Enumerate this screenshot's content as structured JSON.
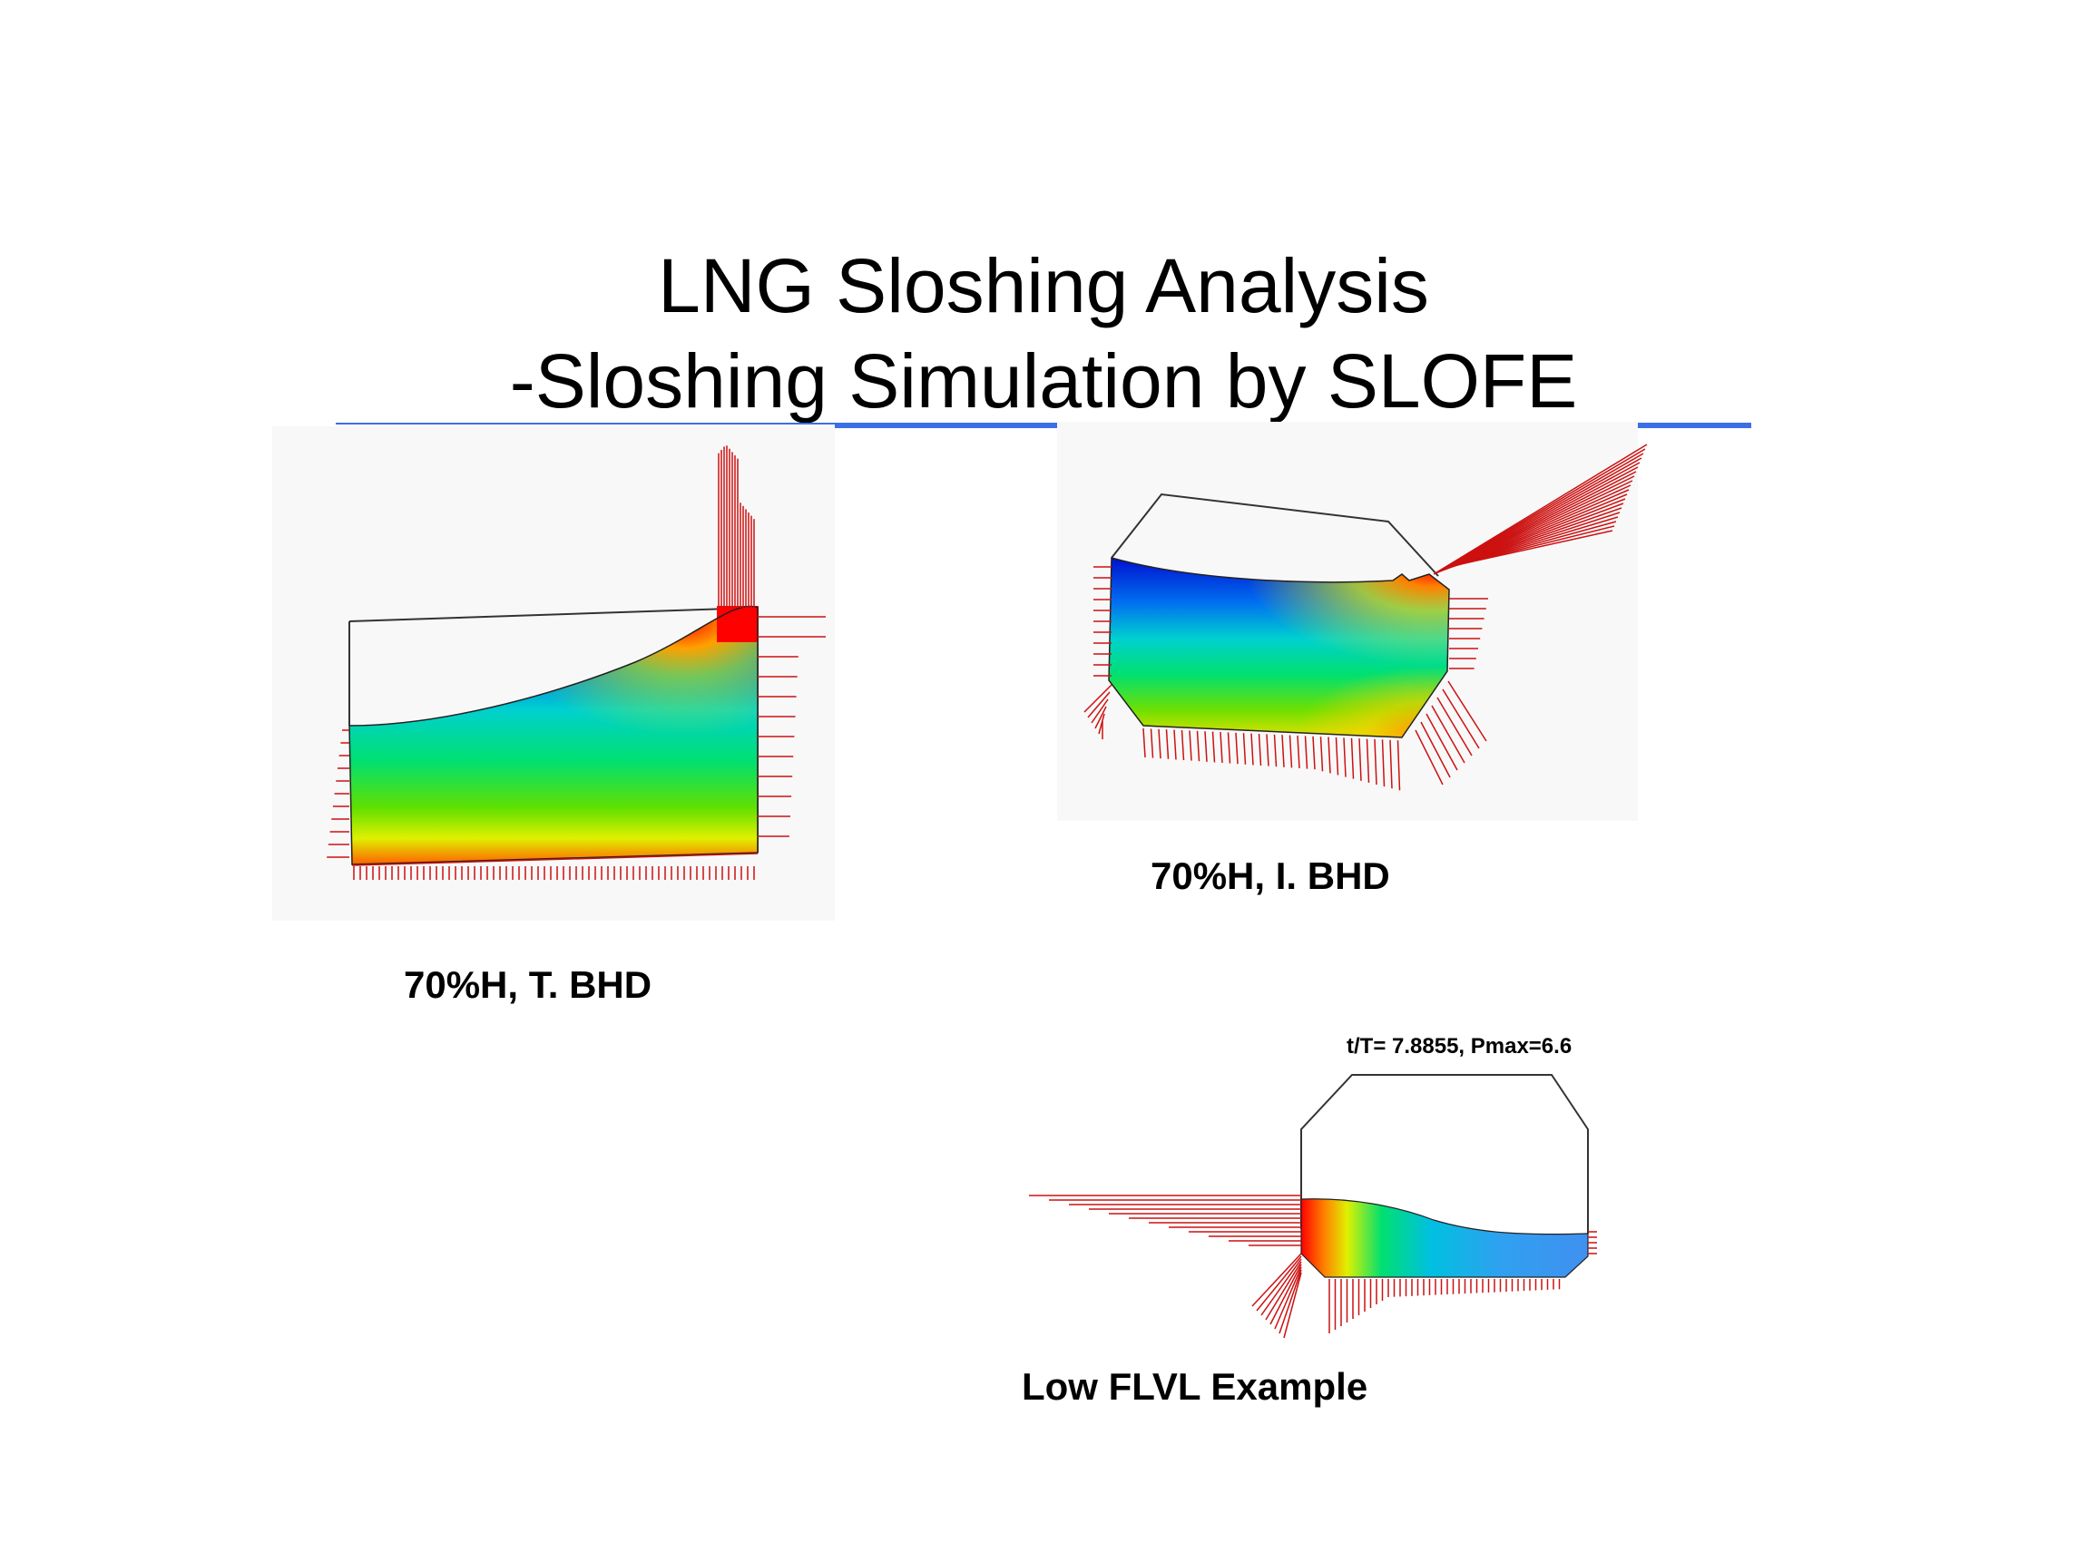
{
  "slide": {
    "title_line1": "LNG Sloshing Analysis",
    "title_line2": "-Sloshing Simulation by SLOFE"
  },
  "panels": {
    "left": {
      "caption": "70%H, T. BHD"
    },
    "right": {
      "caption": "70%H, I. BHD"
    },
    "bottom": {
      "caption": "Low FLVL Example",
      "info": "t/T= 7.8855,  Pmax=6.6"
    }
  },
  "colors": {
    "accent_line": "#3b6fe6",
    "pressure_arrow": "#cc1111",
    "contour_low": "#0000cc",
    "contour_high": "#ff0000"
  }
}
